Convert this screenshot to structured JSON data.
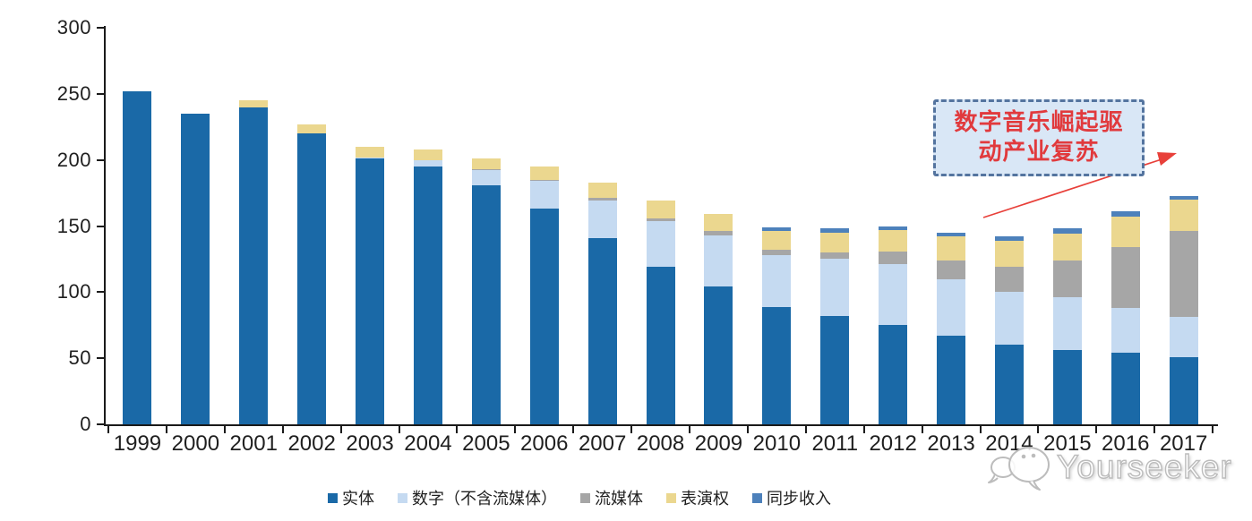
{
  "chart_data": {
    "type": "bar",
    "stacked": true,
    "title": "",
    "xlabel": "",
    "ylabel": "",
    "ylim": [
      0,
      300
    ],
    "yticks": [
      0,
      50,
      100,
      150,
      200,
      250,
      300
    ],
    "grid": false,
    "legend_position": "bottom",
    "categories": [
      "1999",
      "2000",
      "2001",
      "2002",
      "2003",
      "2004",
      "2005",
      "2006",
      "2007",
      "2008",
      "2009",
      "2010",
      "2011",
      "2012",
      "2013",
      "2014",
      "2015",
      "2016",
      "2017"
    ],
    "series": [
      {
        "name": "实体",
        "color": "#1a69a7",
        "values": [
          252,
          235,
          240,
          220,
          201,
          195,
          181,
          163,
          141,
          119,
          104,
          89,
          82,
          75,
          67,
          60,
          56,
          54,
          51
        ]
      },
      {
        "name": "数字（不含流媒体）",
        "color": "#c5daf1",
        "values": [
          0,
          0,
          0,
          0,
          1,
          5,
          11,
          21,
          28,
          35,
          39,
          39,
          43,
          46,
          43,
          40,
          40,
          34,
          30
        ]
      },
      {
        "name": "流媒体",
        "color": "#a6a6a6",
        "values": [
          0,
          0,
          0,
          0,
          0,
          0,
          1,
          1,
          2,
          2,
          3,
          4,
          5,
          10,
          14,
          19,
          28,
          46,
          65
        ]
      },
      {
        "name": "表演权",
        "color": "#ebd78f",
        "values": [
          0,
          0,
          5,
          7,
          8,
          8,
          8,
          10,
          12,
          13,
          13,
          14,
          15,
          16,
          18,
          20,
          20,
          23,
          24
        ]
      },
      {
        "name": "同步收入",
        "color": "#4d81bb",
        "values": [
          0,
          0,
          0,
          0,
          0,
          0,
          0,
          0,
          0,
          0,
          0,
          3,
          3,
          3,
          3,
          3,
          4,
          4,
          3
        ]
      }
    ]
  },
  "annotation": {
    "line1": "数字音乐崛起驱",
    "line2": "动产业复苏",
    "text_color": "#e13a3d",
    "box_fill": "#d9e7f6",
    "box_border": "#54749f",
    "arrow_color": "#e8403a"
  },
  "watermark": {
    "text": "Yourseeker"
  },
  "axis": {
    "line_color": "#1a1a1a",
    "label_color": "#1f1f1f"
  }
}
